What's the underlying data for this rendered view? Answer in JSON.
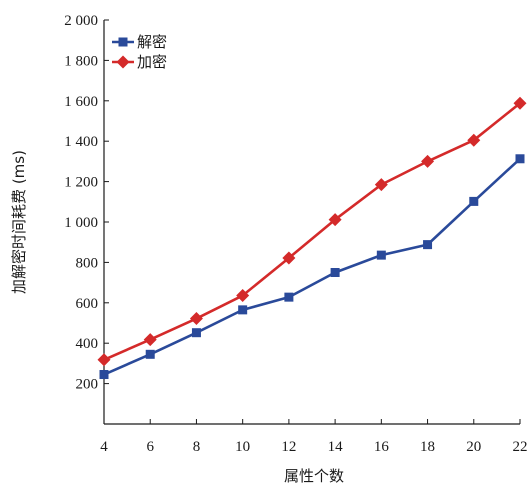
{
  "chart_data": {
    "type": "line",
    "x": [
      4,
      6,
      8,
      10,
      12,
      14,
      16,
      18,
      20,
      22
    ],
    "series": [
      {
        "name": "解密",
        "color": "#2a4a9a",
        "marker": "square",
        "values": [
          245,
          345,
          452,
          565,
          628,
          750,
          836,
          888,
          1102,
          1313
        ]
      },
      {
        "name": "加密",
        "color": "#d42a2a",
        "marker": "diamond",
        "values": [
          318,
          418,
          522,
          636,
          822,
          1012,
          1185,
          1300,
          1405,
          1588
        ]
      }
    ],
    "xlabel": "属性个数",
    "ylabel": "加解密时间耗费 (ms)",
    "xlim": [
      4,
      22
    ],
    "ylim": [
      0,
      2000
    ],
    "xticks": [
      "4",
      "6",
      "8",
      "10",
      "12",
      "14",
      "16",
      "18",
      "20",
      "22"
    ],
    "yticks": [
      "200",
      "400",
      "600",
      "800",
      "1 000",
      "1 200",
      "1 400",
      "1 600",
      "1 800",
      "2 000"
    ],
    "grid": false,
    "legend_position": "top-left"
  }
}
